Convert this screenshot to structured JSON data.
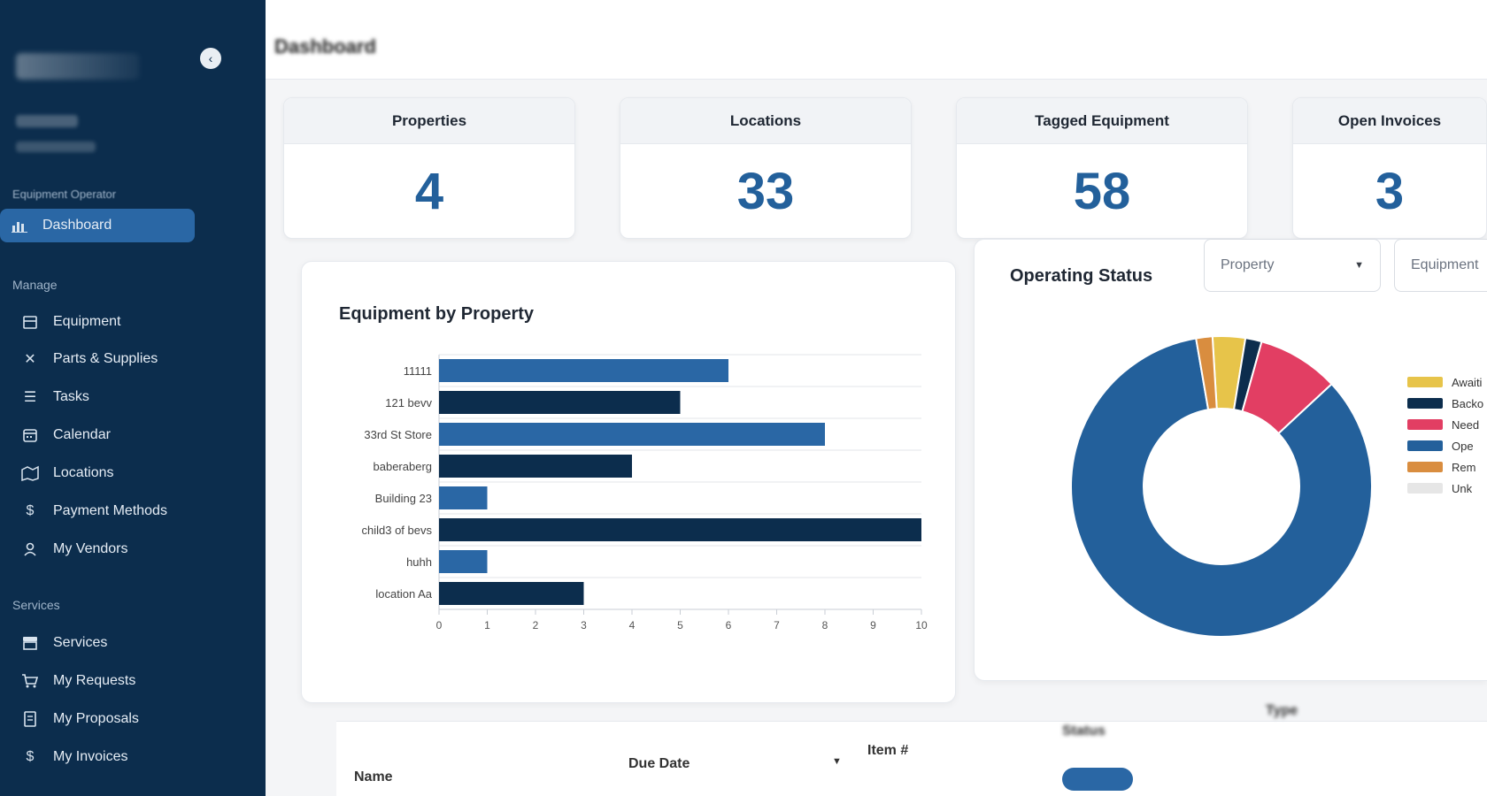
{
  "sidebar": {
    "collapse_icon": "chevron-left-icon",
    "user_role": "Equipment Operator",
    "active_item": {
      "label": "Dashboard",
      "icon": "chart-icon"
    },
    "sections": [
      {
        "label": "Manage",
        "items": [
          {
            "label": "Equipment",
            "icon": "box-icon"
          },
          {
            "label": "Parts & Supplies",
            "icon": "tools-icon"
          },
          {
            "label": "Tasks",
            "icon": "list-icon"
          },
          {
            "label": "Calendar",
            "icon": "calendar-icon"
          },
          {
            "label": "Locations",
            "icon": "map-icon"
          },
          {
            "label": "Payment Methods",
            "icon": "dollar-icon"
          },
          {
            "label": "My Vendors",
            "icon": "person-icon"
          }
        ]
      },
      {
        "label": "Services",
        "items": [
          {
            "label": "Services",
            "icon": "store-icon"
          },
          {
            "label": "My Requests",
            "icon": "cart-icon"
          },
          {
            "label": "My Proposals",
            "icon": "receipt-icon"
          },
          {
            "label": "My Invoices",
            "icon": "dollar-icon"
          }
        ]
      }
    ]
  },
  "header": {
    "title": "Dashboard"
  },
  "stats": [
    {
      "label": "Properties",
      "value": "4"
    },
    {
      "label": "Locations",
      "value": "33"
    },
    {
      "label": "Tagged Equipment",
      "value": "58"
    },
    {
      "label": "Open Invoices",
      "value": "3"
    }
  ],
  "equipment_chart": {
    "title": "Equipment by Property",
    "chart_data": {
      "type": "bar",
      "orientation": "horizontal",
      "categories": [
        "11111",
        "121 bevv",
        "33rd St Store",
        "baberaberg",
        "Building 23",
        "child3 of bevs",
        "huhh",
        "location Aa"
      ],
      "values": [
        6,
        5,
        8,
        4,
        1,
        10,
        1,
        3
      ],
      "xlim": [
        0,
        10
      ],
      "xticks": [
        "0",
        "1",
        "2",
        "3",
        "4",
        "5",
        "6",
        "7",
        "8",
        "9",
        "10"
      ],
      "grid": true,
      "colors": [
        "#2a67a5",
        "#0c2d4d"
      ]
    }
  },
  "status_chart": {
    "title": "Operating Status",
    "filters": {
      "property_placeholder": "Property",
      "equipment_placeholder": "Equipment"
    },
    "chart_data": {
      "type": "pie",
      "donut": true,
      "labels": [
        "Awaiting",
        "Backordered",
        "Needs Repair",
        "Operational",
        "Removed",
        "Unknown"
      ],
      "legend_visible": [
        "Awaiti",
        "Backo",
        "Need",
        "Ope",
        "Rem",
        "Unk"
      ],
      "values": [
        2,
        1,
        5,
        48,
        1,
        0
      ],
      "colors": [
        "#e7c44a",
        "#0c2d4d",
        "#e23e63",
        "#23609b",
        "#d98d3f",
        "#e6e6e6"
      ],
      "legend_position": "right"
    }
  },
  "table": {
    "headers": {
      "name": "Name",
      "due_date": "Due Date",
      "item": "Item #",
      "status": "Status",
      "type": "Type"
    }
  }
}
